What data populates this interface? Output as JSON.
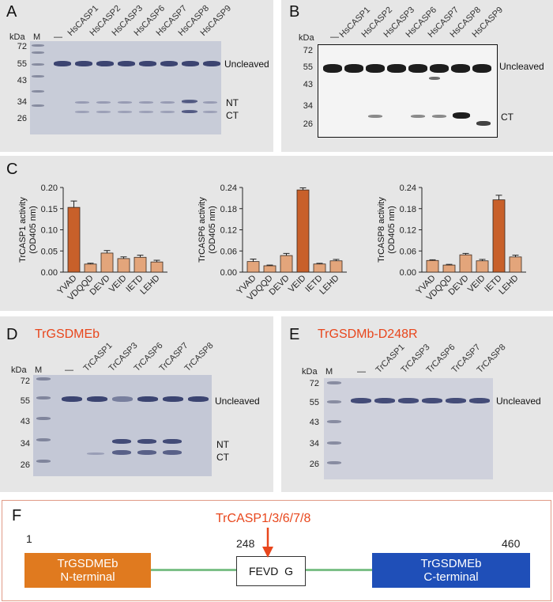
{
  "panels": {
    "A": {
      "label": "A",
      "kda": "kDa",
      "marker": "M",
      "dash": "—",
      "lanes": [
        "HsCASP1",
        "HsCASP2",
        "HsCASP3",
        "HsCASP6",
        "HsCASP7",
        "HsCASP8",
        "HsCASP9"
      ],
      "mw": [
        "72",
        "55",
        "43",
        "34",
        "26"
      ],
      "side": {
        "uncleaved": "Uncleaved",
        "nt": "NT",
        "ct": "CT"
      }
    },
    "B": {
      "label": "B",
      "kda": "kDa",
      "dash": "—",
      "lanes": [
        "HsCASP1",
        "HsCASP2",
        "HsCASP3",
        "HsCASP6",
        "HsCASP7",
        "HsCASP8",
        "HsCASP9"
      ],
      "mw": [
        "72",
        "55",
        "43",
        "34",
        "26"
      ],
      "side": {
        "uncleaved": "Uncleaved",
        "ct": "CT"
      }
    },
    "C": {
      "label": "C"
    },
    "D": {
      "label": "D",
      "title": "TrGSDMEb",
      "kda": "kDa",
      "marker": "M",
      "dash": "—",
      "lanes": [
        "TrCASP1",
        "TrCASP3",
        "TrCASP6",
        "TrCASP7",
        "TrCASP8"
      ],
      "mw": [
        "72",
        "55",
        "43",
        "34",
        "26"
      ],
      "side": {
        "uncleaved": "Uncleaved",
        "nt": "NT",
        "ct": "CT"
      }
    },
    "E": {
      "label": "E",
      "title": "TrGSDMb-D248R",
      "kda": "kDa",
      "marker": "M",
      "dash": "—",
      "lanes": [
        "TrCASP1",
        "TrCASP3",
        "TrCASP6",
        "TrCASP7",
        "TrCASP8"
      ],
      "mw": [
        "72",
        "55",
        "43",
        "34",
        "26"
      ],
      "side": {
        "uncleaved": "Uncleaved"
      }
    },
    "F": {
      "label": "F",
      "enzymes": "TrCASP1/3/6/7/8",
      "pos_start": "1",
      "pos_site": "248",
      "pos_end": "460",
      "nterm_line1": "TrGSDMEb",
      "nterm_line2": "N-terminal",
      "site": "FEVD  G",
      "cterm_line1": "TrGSDMEb",
      "cterm_line2": "C-terminal"
    }
  },
  "colors": {
    "bar": "#c8602a",
    "bar_light": "#e3a57b",
    "nterm": "#e07a1f",
    "cterm": "#1f4fb8",
    "accent": "#e8461c",
    "linker": "#7cc088"
  },
  "chart_data": [
    {
      "type": "bar",
      "ylabel": "TrCASP1 activity\n(OD405 nm)",
      "categories": [
        "YVAD",
        "VDQQD",
        "DEVD",
        "VEID",
        "IETD",
        "LEHD"
      ],
      "values": [
        0.153,
        0.019,
        0.045,
        0.032,
        0.035,
        0.024
      ],
      "errors": [
        0.015,
        0.002,
        0.006,
        0.004,
        0.005,
        0.004
      ],
      "ylim": [
        0,
        0.2
      ],
      "yticks": [
        "0.00",
        "0.05",
        "0.10",
        "0.15",
        "0.20"
      ],
      "highlight": 0
    },
    {
      "type": "bar",
      "ylabel": "TrCASP6 activity\n(OD405 nm)",
      "categories": [
        "YVAD",
        "VDQQD",
        "DEVD",
        "VEID",
        "IETD",
        "LEHD"
      ],
      "values": [
        0.03,
        0.018,
        0.047,
        0.233,
        0.023,
        0.032
      ],
      "errors": [
        0.007,
        0.002,
        0.006,
        0.006,
        0.002,
        0.004
      ],
      "ylim": [
        0,
        0.24
      ],
      "yticks": [
        "0.00",
        "0.06",
        "0.12",
        "0.18",
        "0.24"
      ],
      "highlight": 3
    },
    {
      "type": "bar",
      "ylabel": "TrCASP8 activity\n(OD405 nm)",
      "categories": [
        "YVAD",
        "VDQQD",
        "DEVD",
        "VEID",
        "IETD",
        "LEHD"
      ],
      "values": [
        0.033,
        0.02,
        0.049,
        0.032,
        0.205,
        0.043
      ],
      "errors": [
        0.002,
        0.002,
        0.004,
        0.004,
        0.013,
        0.005
      ],
      "ylim": [
        0,
        0.24
      ],
      "yticks": [
        "0.00",
        "0.06",
        "0.12",
        "0.18",
        "0.24"
      ],
      "highlight": 4
    }
  ]
}
